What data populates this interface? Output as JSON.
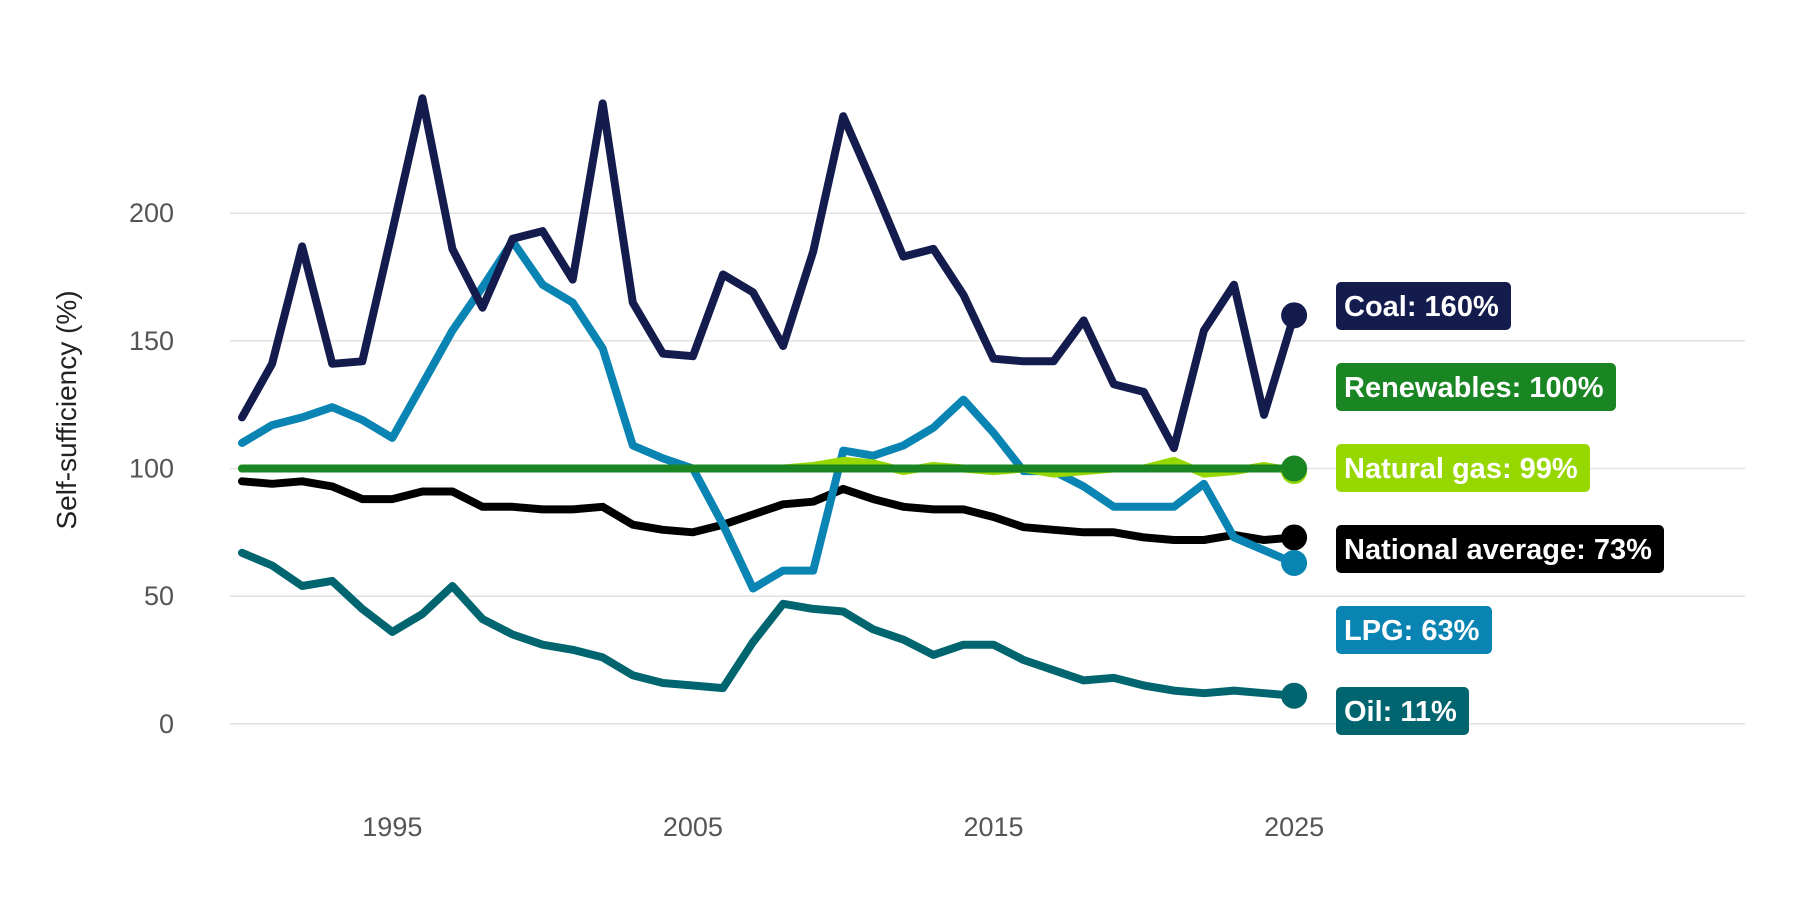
{
  "chart_data": {
    "type": "line",
    "title": "",
    "xlabel": "",
    "ylabel": "Self-sufficiency (%)",
    "xlim": [
      1989.6,
      2040
    ],
    "ylim": [
      -22,
      260
    ],
    "x_ticks": [
      1995,
      2005,
      2015,
      2025
    ],
    "y_ticks": [
      0,
      50,
      100,
      150,
      200
    ],
    "grid": "horizontal",
    "legend": "none (labels at line ends)",
    "x": [
      1990,
      1991,
      1992,
      1993,
      1994,
      1995,
      1996,
      1997,
      1998,
      1999,
      2000,
      2001,
      2002,
      2003,
      2004,
      2005,
      2006,
      2007,
      2008,
      2009,
      2010,
      2011,
      2012,
      2013,
      2014,
      2015,
      2016,
      2017,
      2018,
      2019,
      2020,
      2021,
      2022,
      2023,
      2024,
      2025
    ],
    "series": [
      {
        "name": "Coal",
        "label": "Coal: 160%",
        "color": "#141b4d",
        "values": [
          120,
          141,
          187,
          141,
          142,
          193,
          245,
          186,
          163,
          190,
          193,
          174,
          243,
          165,
          145,
          144,
          176,
          169,
          148,
          185,
          238,
          211,
          183,
          186,
          168,
          143,
          142,
          142,
          158,
          133,
          130,
          108,
          154,
          172,
          121,
          160
        ]
      },
      {
        "name": "Renewables",
        "label": "Renewables: 100%",
        "color": "#1a8523",
        "values": [
          100,
          100,
          100,
          100,
          100,
          100,
          100,
          100,
          100,
          100,
          100,
          100,
          100,
          100,
          100,
          100,
          100,
          100,
          100,
          100,
          100,
          100,
          100,
          100,
          100,
          100,
          100,
          100,
          100,
          100,
          100,
          100,
          100,
          100,
          100,
          100
        ]
      },
      {
        "name": "Natural gas",
        "label": "Natural gas: 99%",
        "color": "#97d700",
        "values": [
          100,
          100,
          100,
          100,
          100,
          100,
          100,
          100,
          100,
          100,
          100,
          100,
          100,
          100,
          100,
          100,
          100,
          100,
          100,
          101,
          103,
          102,
          99,
          101,
          100,
          99,
          100,
          98,
          99,
          100,
          100,
          103,
          98,
          99,
          101,
          99
        ]
      },
      {
        "name": "National average",
        "label": "National average: 73%",
        "color": "#000000",
        "values": [
          95,
          94,
          95,
          93,
          88,
          88,
          91,
          91,
          85,
          85,
          84,
          84,
          85,
          78,
          76,
          75,
          78,
          82,
          86,
          87,
          92,
          88,
          85,
          84,
          84,
          81,
          77,
          76,
          75,
          75,
          73,
          72,
          72,
          74,
          72,
          73
        ]
      },
      {
        "name": "LPG",
        "label": "LPG: 63%",
        "color": "#0a84b3",
        "values": [
          110,
          117,
          120,
          124,
          119,
          112,
          133,
          154,
          171,
          189,
          172,
          165,
          147,
          109,
          104,
          100,
          78,
          53,
          60,
          60,
          107,
          105,
          109,
          116,
          127,
          114,
          99,
          99,
          93,
          85,
          85,
          85,
          94,
          73,
          68,
          63
        ]
      },
      {
        "name": "Oil",
        "label": "Oil: 11%",
        "color": "#00656f",
        "values": [
          67,
          62,
          54,
          56,
          45,
          36,
          43,
          54,
          41,
          35,
          31,
          29,
          26,
          19,
          16,
          15,
          14,
          32,
          47,
          45,
          44,
          37,
          33,
          27,
          31,
          31,
          25,
          21,
          17,
          18,
          15,
          13,
          12,
          13,
          12,
          11
        ]
      }
    ],
    "draw_order": [
      "National average",
      "Oil",
      "LPG",
      "Coal",
      "Natural gas",
      "Renewables"
    ]
  }
}
